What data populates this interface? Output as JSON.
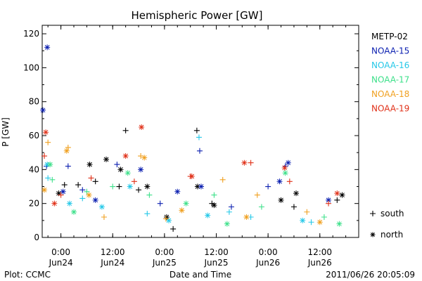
{
  "chart_data": {
    "type": "scatter",
    "title": "Hemispheric Power [GW]",
    "xlabel": "Date and Time",
    "ylabel": "P [GW]",
    "ylim": [
      0,
      125
    ],
    "xlim": [
      "2011-06-23 19:40",
      "2011-06-26 21:00"
    ],
    "y_ticks": [
      0,
      20,
      40,
      60,
      80,
      100,
      120
    ],
    "x_ticks": [
      {
        "value": "2011-06-24 00:00",
        "time": "0:00",
        "date": "Jun24"
      },
      {
        "value": "2011-06-24 12:00",
        "time": "12:00",
        "date": "Jun24"
      },
      {
        "value": "2011-06-25 00:00",
        "time": "0:00",
        "date": "Jun25"
      },
      {
        "value": "2011-06-25 12:00",
        "time": "12:00",
        "date": "Jun25"
      },
      {
        "value": "2011-06-26 00:00",
        "time": "0:00",
        "date": "Jun26"
      },
      {
        "value": "2011-06-26 12:00",
        "time": "12:00",
        "date": "Jun26"
      }
    ],
    "marker_legend": [
      {
        "label": "south",
        "symbol": "+"
      },
      {
        "label": "north",
        "symbol": "*"
      }
    ],
    "series": [
      {
        "name": "METP-02",
        "color": "#000000",
        "south": [
          [
            "2011-06-24 00:50",
            31
          ],
          [
            "2011-06-24 04:00",
            31
          ],
          [
            "2011-06-24 08:00",
            33
          ],
          [
            "2011-06-24 13:30",
            30
          ],
          [
            "2011-06-24 15:00",
            63
          ],
          [
            "2011-06-24 18:00",
            28
          ],
          [
            "2011-06-25 02:00",
            5
          ],
          [
            "2011-06-25 07:30",
            63
          ],
          [
            "2011-06-25 11:00",
            20
          ],
          [
            "2011-06-26 06:00",
            18
          ],
          [
            "2011-06-26 16:00",
            22
          ]
        ],
        "north": [
          [
            "2011-06-23 23:30",
            26
          ],
          [
            "2011-06-24 06:40",
            43
          ],
          [
            "2011-06-24 10:30",
            46
          ],
          [
            "2011-06-24 13:50",
            40
          ],
          [
            "2011-06-24 20:00",
            30
          ],
          [
            "2011-06-25 00:30",
            12
          ],
          [
            "2011-06-25 07:40",
            30
          ],
          [
            "2011-06-25 11:30",
            19
          ],
          [
            "2011-06-26 03:00",
            22
          ],
          [
            "2011-06-26 06:30",
            26
          ],
          [
            "2011-06-26 17:10",
            25
          ]
        ]
      },
      {
        "name": "NOAA-15",
        "color": "#0b1fb0",
        "south": [
          [
            "2011-06-23 20:40",
            42
          ],
          [
            "2011-06-24 01:40",
            42
          ],
          [
            "2011-06-24 05:00",
            28
          ],
          [
            "2011-06-24 13:00",
            43
          ],
          [
            "2011-06-24 23:00",
            20
          ],
          [
            "2011-06-25 08:10",
            51
          ],
          [
            "2011-06-25 15:30",
            18
          ],
          [
            "2011-06-26 00:00",
            30
          ],
          [
            "2011-06-26 04:00",
            42
          ]
        ],
        "north": [
          [
            "2011-06-23 19:50",
            75
          ],
          [
            "2011-06-23 20:50",
            112
          ],
          [
            "2011-06-24 00:30",
            27
          ],
          [
            "2011-06-24 08:00",
            22
          ],
          [
            "2011-06-24 18:30",
            40
          ],
          [
            "2011-06-25 03:00",
            27
          ],
          [
            "2011-06-25 08:30",
            30
          ],
          [
            "2011-06-26 02:40",
            33
          ],
          [
            "2011-06-26 04:40",
            44
          ],
          [
            "2011-06-26 14:00",
            22
          ]
        ]
      },
      {
        "name": "NOAA-16",
        "color": "#25c8e8",
        "south": [
          [
            "2011-06-23 21:00",
            35
          ],
          [
            "2011-06-24 05:00",
            23
          ],
          [
            "2011-06-24 20:00",
            14
          ],
          [
            "2011-06-25 08:00",
            59
          ],
          [
            "2011-06-25 15:00",
            15
          ],
          [
            "2011-06-25 20:00",
            12
          ],
          [
            "2011-06-26 10:00",
            9
          ]
        ],
        "north": [
          [
            "2011-06-23 20:50",
            43
          ],
          [
            "2011-06-24 02:00",
            20
          ],
          [
            "2011-06-24 09:30",
            18
          ],
          [
            "2011-06-24 16:00",
            30
          ],
          [
            "2011-06-25 01:00",
            10
          ],
          [
            "2011-06-25 10:00",
            13
          ],
          [
            "2011-06-26 08:00",
            10
          ]
        ]
      },
      {
        "name": "NOAA-17",
        "color": "#3de08a",
        "south": [
          [
            "2011-06-23 22:00",
            34
          ],
          [
            "2011-06-24 06:00",
            27
          ],
          [
            "2011-06-24 12:00",
            30
          ],
          [
            "2011-06-24 20:30",
            25
          ],
          [
            "2011-06-25 11:30",
            25
          ],
          [
            "2011-06-25 22:30",
            18
          ],
          [
            "2011-06-26 13:00",
            12
          ]
        ],
        "north": [
          [
            "2011-06-23 21:30",
            43
          ],
          [
            "2011-06-24 03:00",
            15
          ],
          [
            "2011-06-24 15:30",
            38
          ],
          [
            "2011-06-25 05:00",
            20
          ],
          [
            "2011-06-25 14:30",
            8
          ],
          [
            "2011-06-26 04:00",
            38
          ],
          [
            "2011-06-26 16:30",
            8
          ]
        ]
      },
      {
        "name": "NOAA-18",
        "color": "#f0a020",
        "south": [
          [
            "2011-06-23 21:00",
            56
          ],
          [
            "2011-06-24 01:40",
            53
          ],
          [
            "2011-06-24 10:00",
            12
          ],
          [
            "2011-06-24 18:30",
            48
          ],
          [
            "2011-06-25 00:20",
            11
          ],
          [
            "2011-06-25 13:30",
            34
          ],
          [
            "2011-06-25 21:30",
            25
          ],
          [
            "2011-06-26 09:00",
            15
          ]
        ],
        "north": [
          [
            "2011-06-23 20:10",
            28
          ],
          [
            "2011-06-24 01:20",
            51
          ],
          [
            "2011-06-24 06:30",
            25
          ],
          [
            "2011-06-24 19:20",
            47
          ],
          [
            "2011-06-25 04:00",
            16
          ],
          [
            "2011-06-25 19:00",
            12
          ],
          [
            "2011-06-26 12:00",
            9
          ]
        ]
      },
      {
        "name": "NOAA-19",
        "color": "#e03018",
        "south": [
          [
            "2011-06-23 20:10",
            48
          ],
          [
            "2011-06-24 00:00",
            25
          ],
          [
            "2011-06-24 07:00",
            35
          ],
          [
            "2011-06-24 17:00",
            33
          ],
          [
            "2011-06-25 06:00",
            36
          ],
          [
            "2011-06-25 20:00",
            44
          ],
          [
            "2011-06-26 05:00",
            33
          ],
          [
            "2011-06-26 14:00",
            20
          ]
        ],
        "north": [
          [
            "2011-06-23 20:30",
            62
          ],
          [
            "2011-06-23 22:30",
            20
          ],
          [
            "2011-06-24 15:00",
            48
          ],
          [
            "2011-06-24 18:40",
            65
          ],
          [
            "2011-06-25 06:20",
            36
          ],
          [
            "2011-06-25 18:30",
            44
          ],
          [
            "2011-06-26 03:50",
            41
          ],
          [
            "2011-06-26 16:00",
            26
          ]
        ]
      }
    ]
  },
  "footer": {
    "plot_credit": "Plot: CCMC",
    "timestamp": "2011/06/26 20:05:09"
  }
}
